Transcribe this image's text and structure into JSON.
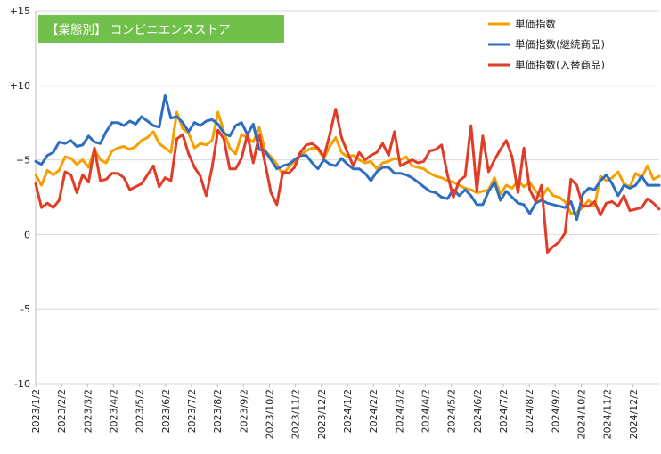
{
  "chart_data": {
    "type": "line",
    "title": "【業態別】 コンビニエンスストア",
    "title_box_color": "#70c04b",
    "ylim": [
      -10,
      15
    ],
    "yticks": [
      15,
      10,
      5,
      0,
      -5,
      -10
    ],
    "ytick_labels": [
      "+15",
      "+10",
      "+5",
      "0",
      "-5",
      "-10"
    ],
    "grid": "horizontal",
    "legend_position": "top-right",
    "x_start": "2023/1/2",
    "x_end": "2024/12/30",
    "x_tick_labels": [
      "2023/1/2",
      "2023/2/2",
      "2023/3/2",
      "2023/4/2",
      "2023/5/2",
      "2023/6/2",
      "2023/7/2",
      "2023/8/2",
      "2023/9/2",
      "2023/10/2",
      "2023/11/2",
      "2023/12/2",
      "2024/1/2",
      "2024/2/2",
      "2024/3/2",
      "2024/4/2",
      "2024/5/2",
      "2024/6/2",
      "2024/7/2",
      "2024/8/2",
      "2024/9/2",
      "2024/10/2",
      "2024/11/2",
      "2024/12/2"
    ],
    "series": [
      {
        "name": "単価指数",
        "color": "#f5a000",
        "values": [
          4.0,
          3.3,
          4.3,
          4.0,
          4.3,
          5.2,
          5.1,
          4.7,
          5.0,
          4.5,
          5.7,
          5.0,
          4.8,
          5.6,
          5.8,
          5.9,
          5.7,
          5.9,
          6.3,
          6.5,
          6.9,
          6.1,
          5.8,
          5.5,
          8.2,
          7.1,
          6.8,
          5.8,
          6.1,
          6.0,
          6.3,
          8.2,
          6.9,
          5.8,
          5.4,
          6.7,
          6.5,
          6.2,
          7.2,
          5.6,
          5.2,
          4.7,
          4.0,
          4.5,
          4.9,
          5.3,
          5.6,
          5.8,
          5.7,
          5.1,
          5.9,
          6.5,
          5.5,
          5.2,
          5.3,
          5.0,
          4.8,
          4.9,
          4.4,
          4.8,
          4.9,
          5.1,
          5.0,
          5.2,
          4.6,
          4.5,
          4.4,
          4.1,
          3.9,
          3.8,
          3.6,
          3.5,
          3.3,
          3.1,
          3.0,
          2.8,
          2.9,
          3.0,
          3.8,
          2.7,
          3.3,
          3.1,
          3.6,
          3.2,
          3.5,
          2.9,
          2.5,
          3.1,
          2.6,
          2.5,
          2.2,
          1.4,
          1.5,
          1.8,
          2.3,
          1.9,
          3.9,
          3.6,
          3.8,
          4.2,
          3.4,
          3.2,
          4.1,
          3.8,
          4.6,
          3.7,
          3.9
        ]
      },
      {
        "name": "単価指数(継続商品)",
        "color": "#2e6ec0",
        "values": [
          4.9,
          4.7,
          5.3,
          5.5,
          6.2,
          6.1,
          6.3,
          5.9,
          6.0,
          6.6,
          6.2,
          6.1,
          6.9,
          7.5,
          7.5,
          7.3,
          7.6,
          7.4,
          7.9,
          7.6,
          7.3,
          7.2,
          9.3,
          7.8,
          7.9,
          7.5,
          6.9,
          7.5,
          7.3,
          7.6,
          7.7,
          7.4,
          6.8,
          6.6,
          7.3,
          7.5,
          6.7,
          7.4,
          5.7,
          5.6,
          5.0,
          4.4,
          4.6,
          4.7,
          5.0,
          5.3,
          5.3,
          4.8,
          4.4,
          5.0,
          4.7,
          4.6,
          5.1,
          4.7,
          4.4,
          4.4,
          4.1,
          3.6,
          4.2,
          4.5,
          4.5,
          4.1,
          4.1,
          4.0,
          3.8,
          3.5,
          3.2,
          2.9,
          2.8,
          2.5,
          2.4,
          3.0,
          2.6,
          3.0,
          2.6,
          2.0,
          2.0,
          2.9,
          3.5,
          2.3,
          2.9,
          2.5,
          2.1,
          2.0,
          1.4,
          2.1,
          2.3,
          2.1,
          2.0,
          1.9,
          1.8,
          2.2,
          1.0,
          2.7,
          3.1,
          3.0,
          3.6,
          4.0,
          3.4,
          2.6,
          3.3,
          3.1,
          3.3,
          3.9,
          3.3,
          3.3,
          3.3
        ]
      },
      {
        "name": "単価指数(入替商品)",
        "color": "#e03c28",
        "values": [
          3.4,
          1.8,
          2.1,
          1.8,
          2.3,
          4.2,
          4.0,
          2.8,
          4.0,
          3.5,
          5.8,
          3.6,
          3.7,
          4.1,
          4.1,
          3.8,
          3.0,
          3.2,
          3.4,
          4.0,
          4.6,
          3.2,
          3.8,
          3.6,
          6.4,
          6.7,
          5.4,
          4.5,
          3.9,
          2.6,
          4.5,
          7.0,
          6.4,
          4.4,
          4.4,
          5.1,
          6.7,
          4.8,
          6.7,
          4.8,
          2.8,
          2.0,
          4.2,
          4.1,
          4.5,
          5.5,
          6.0,
          6.1,
          5.8,
          5.2,
          6.7,
          8.4,
          6.5,
          5.5,
          4.6,
          5.5,
          5.0,
          5.3,
          5.5,
          6.1,
          5.3,
          6.9,
          4.6,
          4.8,
          5.0,
          4.8,
          4.9,
          5.6,
          5.7,
          6.0,
          4.0,
          2.5,
          3.6,
          3.9,
          7.3,
          2.9,
          6.6,
          4.2,
          5.0,
          5.7,
          6.3,
          5.2,
          2.8,
          5.8,
          3.0,
          2.2,
          3.3,
          -1.2,
          -0.8,
          -0.5,
          0.1,
          3.7,
          3.3,
          1.9,
          1.9,
          2.2,
          1.3,
          2.1,
          2.2,
          1.9,
          2.6,
          1.6,
          1.7,
          1.8,
          2.4,
          2.1,
          1.7
        ]
      }
    ]
  }
}
